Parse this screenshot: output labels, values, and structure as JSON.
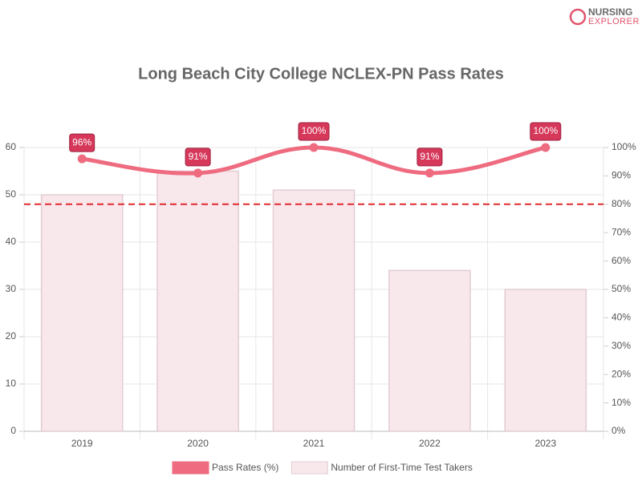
{
  "logo": {
    "line1": "NURSING",
    "line2": "EXPLORER"
  },
  "chart_data": {
    "type": "combo",
    "title": "Long Beach City College NCLEX-PN Pass Rates",
    "categories": [
      "2019",
      "2020",
      "2021",
      "2022",
      "2023"
    ],
    "series": [
      {
        "name": "Pass Rates (%)",
        "type": "line",
        "axis": "y2",
        "color": "#ee6b80",
        "values": [
          96,
          91,
          100,
          91,
          100
        ],
        "value_labels": [
          "96%",
          "91%",
          "100%",
          "91%",
          "100%"
        ]
      },
      {
        "name": "Number of First-Time Test Takers",
        "type": "bar",
        "color": "#f8e7eb",
        "edge_color": "#e2cdd3",
        "values": [
          50,
          55,
          51,
          34,
          30
        ]
      }
    ],
    "ylim": [
      0,
      60
    ],
    "yticks": [
      0,
      10,
      20,
      30,
      40,
      50,
      60
    ],
    "y2lim": [
      0,
      100
    ],
    "y2ticks": [
      {
        "value": 0,
        "label": "0%"
      },
      {
        "value": 10,
        "label": "10%"
      },
      {
        "value": 20,
        "label": "20%"
      },
      {
        "value": 30,
        "label": "30%"
      },
      {
        "value": 40,
        "label": "40%"
      },
      {
        "value": 50,
        "label": "50%"
      },
      {
        "value": 60,
        "label": "60%"
      },
      {
        "value": 70,
        "label": "70%"
      },
      {
        "value": 80,
        "label": "80%"
      },
      {
        "value": 90,
        "label": "90%"
      },
      {
        "value": 100,
        "label": "100%"
      }
    ],
    "reference_line": {
      "value": 80,
      "axis": "y2",
      "color": "#e02a2f"
    },
    "grid": true
  }
}
